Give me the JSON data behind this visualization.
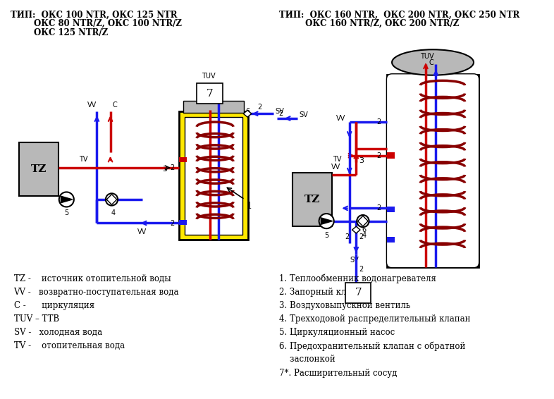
{
  "title_left": [
    "ТИП:  ОКС 100 NTR, ОКС 125 NTR",
    "        ОКС 80 NTR/Z, ОКС 100 NTR/Z",
    "        ОКС 125 NTR/Z"
  ],
  "title_right": [
    "ТИП:  ОКС 160 NTR,  ОКС 200 NTR, ОКС 250 NTR",
    "         ОКС 160 NTR/Z, ОКС 200 NTR/Z"
  ],
  "legend_left": [
    "TZ -    источник отопительной воды",
    "VV -   возвратно-поступательная вода",
    "C -      циркуляция",
    "TUV – ТТВ",
    "SV -   холодная вода",
    "TV -    отопительная вода"
  ],
  "legend_right": [
    "1. Теплообменник водонагревателя",
    "2. Запорный клапан",
    "3. Воздуховыпускной вентиль",
    "4. Трехходовой распределительный клапан",
    "5. Циркуляционный насос",
    "6. Предохранительный клапан с обратной",
    "    заслонкой",
    "7*. Расширительный сосуд"
  ],
  "bg": "#ffffff",
  "red": "#cc0000",
  "blue": "#1a1aee",
  "yellow": "#ffe800",
  "gray": "#b8b8b8",
  "black": "#000000",
  "coil": "#880000"
}
